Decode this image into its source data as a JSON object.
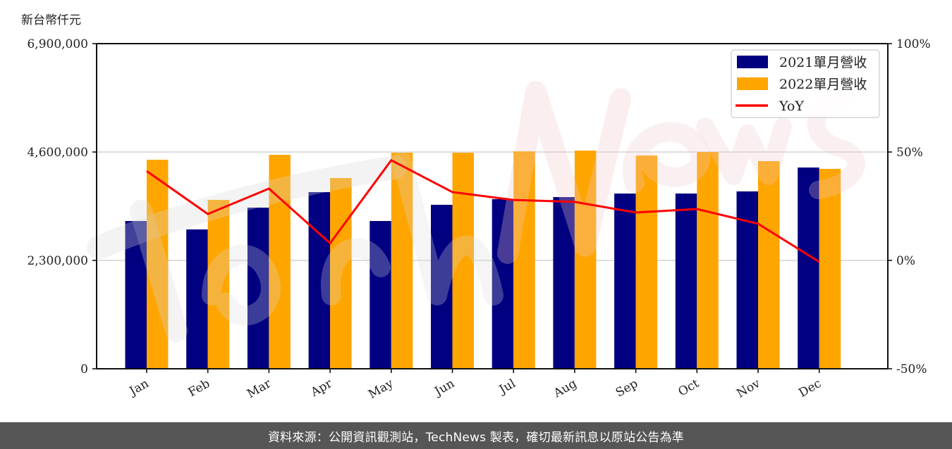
{
  "chart_data": {
    "type": "bar",
    "combo": "bar+line (dual y-axis)",
    "title": "",
    "ylabel_left": "新台幣仟元",
    "ylabel_right": "",
    "xlabel": "",
    "categories": [
      "Jan",
      "Feb",
      "Mar",
      "Apr",
      "May",
      "Jun",
      "Jul",
      "Aug",
      "Sep",
      "Oct",
      "Nov",
      "Dec"
    ],
    "series": [
      {
        "name": "2021單月營收",
        "type": "bar",
        "axis": "left",
        "color": "#000080",
        "values": [
          3136000,
          2957000,
          3420000,
          3749000,
          3136000,
          3480000,
          3599000,
          3644000,
          3719000,
          3719000,
          3764000,
          4271000
        ]
      },
      {
        "name": "2022單月營收",
        "type": "bar",
        "axis": "left",
        "color": "#FFA500",
        "values": [
          4436000,
          3584000,
          4540000,
          4047000,
          4585000,
          4585000,
          4615000,
          4630000,
          4525000,
          4600000,
          4406000,
          4242000
        ]
      },
      {
        "name": "YoY",
        "type": "line",
        "axis": "right",
        "color": "#FF0000",
        "unit": "%",
        "values": [
          41.2,
          21.4,
          33.1,
          7.9,
          46.2,
          31.5,
          27.9,
          27.0,
          22.1,
          23.7,
          16.9,
          -0.7
        ]
      }
    ],
    "ylim_left": [
      0,
      6900000
    ],
    "yticks_left": [
      0,
      2300000,
      4600000,
      6900000
    ],
    "ytick_labels_left": [
      "0",
      "2,300,000",
      "4,600,000",
      "6,900,000"
    ],
    "ylim_right": [
      -50,
      100
    ],
    "yticks_right": [
      -50,
      0,
      50,
      100
    ],
    "ytick_labels_right": [
      "-50%",
      "0%",
      "50%",
      "100%"
    ],
    "grid": "horizontal, light gray at left-axis ticks",
    "legend": {
      "position": "upper right",
      "entries": [
        "2021單月營收",
        "2022單月營收",
        "YoY"
      ]
    },
    "watermark": "TechNews",
    "xtick_rotation": 30
  },
  "footer": {
    "text": "資料來源：公開資訊觀測站，TechNews 製表，確切最新訊息以原站公告為準"
  }
}
